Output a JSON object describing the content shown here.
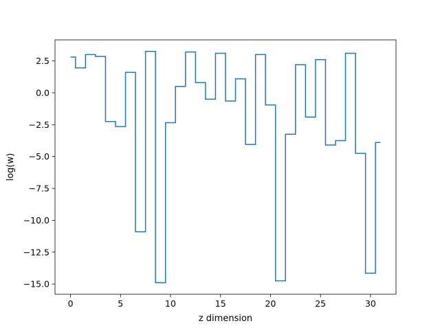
{
  "chart_data": {
    "type": "line",
    "drawstyle": "steps-mid",
    "title": "",
    "xlabel": "z dimension",
    "ylabel": "log(w)",
    "xlim": [
      -1.55,
      32.55
    ],
    "ylim": [
      -15.8,
      4.15
    ],
    "grid": false,
    "line_color": "#1f77b4",
    "x_ticks": [
      0,
      5,
      10,
      15,
      20,
      25,
      30
    ],
    "x_tick_labels": [
      "0",
      "5",
      "10",
      "15",
      "20",
      "25",
      "30"
    ],
    "y_ticks": [
      2.5,
      0,
      -2.5,
      -5,
      -7.5,
      -10,
      -12.5,
      -15
    ],
    "y_tick_labels": [
      "2.5",
      "0.0",
      "−2.5",
      "−5.0",
      "−7.5",
      "−10.0",
      "−12.5",
      "−15.0"
    ],
    "x": [
      0,
      1,
      2,
      3,
      4,
      5,
      6,
      7,
      8,
      9,
      10,
      11,
      12,
      13,
      14,
      15,
      16,
      17,
      18,
      19,
      20,
      21,
      22,
      23,
      24,
      25,
      26,
      27,
      28,
      29,
      30,
      31
    ],
    "y": [
      2.8,
      1.95,
      3.0,
      2.85,
      -2.25,
      -2.65,
      1.6,
      -10.9,
      3.25,
      -14.9,
      -2.35,
      0.5,
      3.2,
      0.8,
      -0.5,
      3.1,
      -0.65,
      1.1,
      -4.05,
      3.0,
      -0.95,
      -14.75,
      -3.25,
      2.2,
      -1.9,
      2.6,
      -4.1,
      -3.75,
      3.1,
      -4.75,
      -14.15,
      -3.9
    ]
  }
}
